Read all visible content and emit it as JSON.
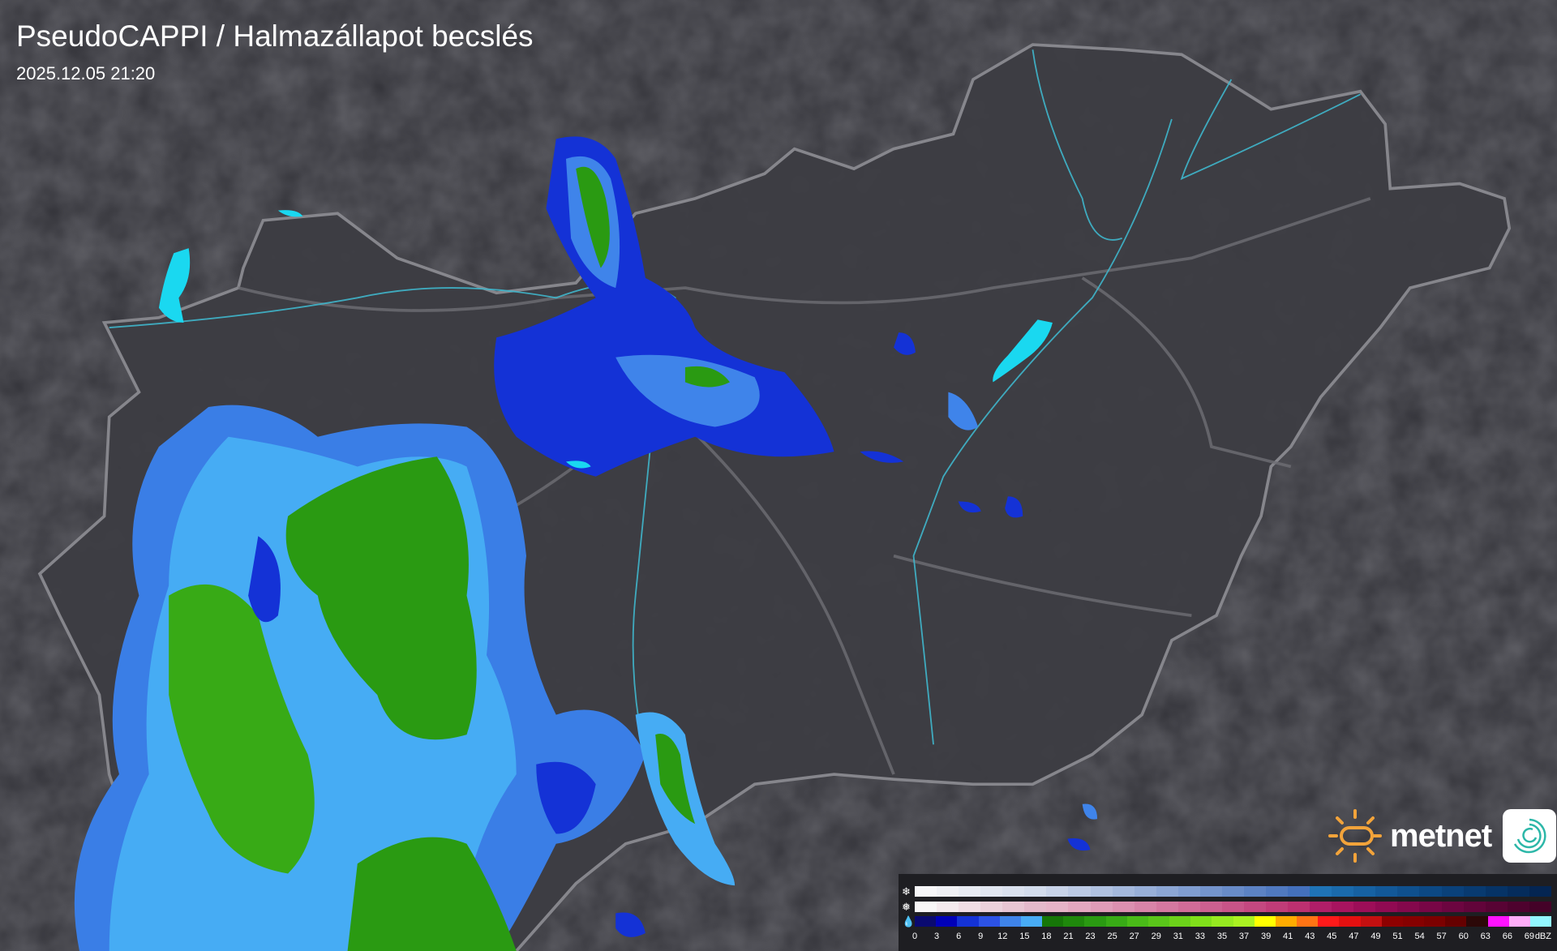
{
  "header": {
    "title": "PseudoCAPPI  / Halmazállapot becslés",
    "timestamp": "2025.12.05 21:20"
  },
  "logo": {
    "brand": "metnet",
    "sun_color": "#f2a33a",
    "app_icon": "swirl-icon"
  },
  "legend": {
    "unit": "dBZ",
    "rows": [
      {
        "type": "snow",
        "icon": "snowflake-icon",
        "colors": [
          "#f6f6f8",
          "#eff0f4",
          "#e8ebf2",
          "#e1e6f0",
          "#dae1ee",
          "#d3dcec",
          "#c8d3e8",
          "#bccae4",
          "#b0c1e0",
          "#a4b8dc",
          "#98afd8",
          "#8ca6d4",
          "#809dd0",
          "#7494cc",
          "#688bc8",
          "#5c82c4",
          "#5079c0",
          "#4470bc",
          "#1f73b6",
          "#1a6aac",
          "#1661a2",
          "#125898",
          "#0f508e",
          "#0c4884",
          "#0a417a",
          "#083a70",
          "#063366",
          "#052c5c",
          "#042552"
        ]
      },
      {
        "type": "sleet",
        "icon": "sleet-icon",
        "colors": [
          "#f8f6f7",
          "#f4eaee",
          "#f0dee5",
          "#ecd2dc",
          "#e8c6d3",
          "#e4bacb",
          "#e6b4c8",
          "#e4a8c0",
          "#e09cb8",
          "#dc90b0",
          "#d884a8",
          "#d478a0",
          "#d06c98",
          "#cc6090",
          "#c85488",
          "#c44880",
          "#c03c78",
          "#bc3070",
          "#b01e68",
          "#a8145f",
          "#9c0e58",
          "#900a52",
          "#84084c",
          "#780646",
          "#6c0540",
          "#62043a",
          "#580334",
          "#4e022e",
          "#440228"
        ]
      },
      {
        "type": "rain",
        "icon": "raindrop-icon",
        "colors": [
          "#0a0a70",
          "#0000b8",
          "#1432d6",
          "#2c52e6",
          "#3f84ea",
          "#48acf6",
          "#167608",
          "#1f880c",
          "#2a9a12",
          "#38aa16",
          "#4abb18",
          "#5ac61a",
          "#6cd21a",
          "#80e01a",
          "#96ea20",
          "#aaf222",
          "#ffff00",
          "#ffac00",
          "#ff7414",
          "#ff1a1a",
          "#e41010",
          "#c41010",
          "#8e0000",
          "#860000",
          "#7c0000",
          "#660000",
          "#2c0808",
          "#ff12ff",
          "#ffacf8"
        ]
      }
    ],
    "extra_color": "#92f6ff",
    "labels": [
      "0",
      "3",
      "6",
      "9",
      "12",
      "15",
      "18",
      "21",
      "23",
      "25",
      "27",
      "29",
      "31",
      "33",
      "35",
      "37",
      "39",
      "41",
      "43",
      "45",
      "47",
      "49",
      "51",
      "54",
      "57",
      "60",
      "63",
      "66",
      "69"
    ]
  }
}
